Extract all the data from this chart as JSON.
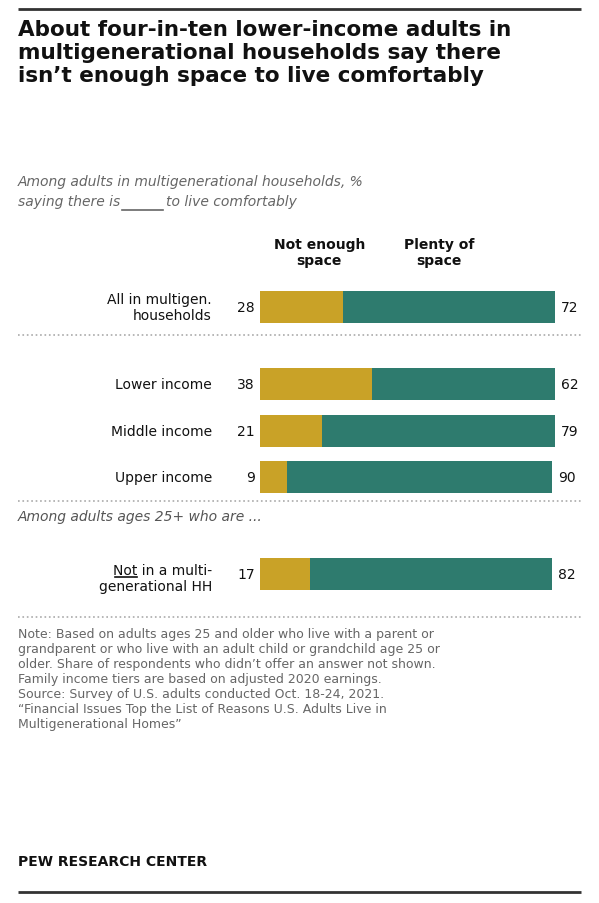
{
  "title": "About four-in-ten lower-income adults in\nmultigenerational households say there\nisn’t enough space to live comfortably",
  "subtitle_line1": "Among adults in multigenerational households, %",
  "subtitle_line2": "saying there is ___  to live comfortably",
  "col_header_left": "Not enough\nspace",
  "col_header_right": "Plenty of\nspace",
  "section2_label": "Among adults ages 25+ who are ...",
  "categories": [
    "All in multigen.\nhouseholds",
    "Lower income",
    "Middle income",
    "Upper income"
  ],
  "category2": "Not in a multi-\ngenerational HH",
  "not_enough": [
    28,
    38,
    21,
    9
  ],
  "plenty": [
    72,
    62,
    79,
    90
  ],
  "not_enough2": 17,
  "plenty2": 82,
  "color_not_enough": "#C9A227",
  "color_plenty": "#2E7B6E",
  "note": "Note: Based on adults ages 25 and older who live with a parent or\ngrandparent or who live with an adult child or grandchild age 25 or\nolder. Share of respondents who didn’t offer an answer not shown.\nFamily income tiers are based on adjusted 2020 earnings.\nSource: Survey of U.S. adults conducted Oct. 18-24, 2021.\n“Financial Issues Top the List of Reasons U.S. Adults Live in\nMultigenerational Homes”",
  "source_label": "PEW RESEARCH CENTER",
  "bg_color": "#FFFFFF",
  "sep_color": "#aaaaaa",
  "top_line_color": "#333333"
}
